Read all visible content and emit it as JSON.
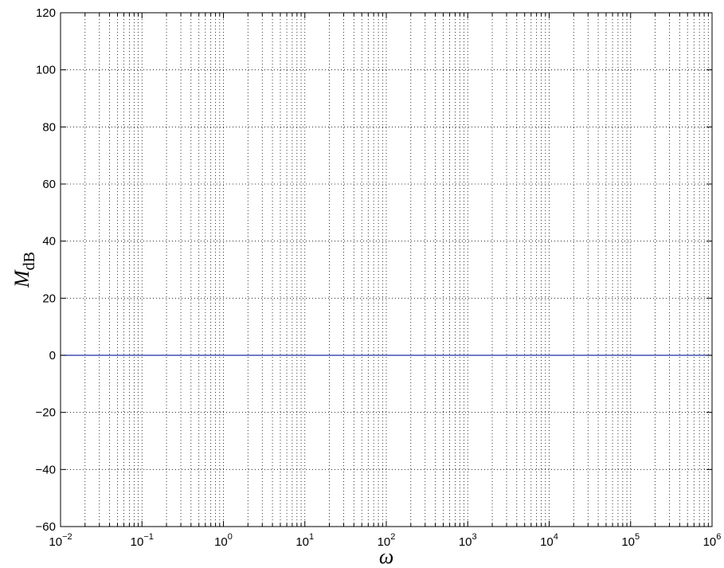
{
  "chart_data": {
    "type": "line",
    "title": "",
    "xlabel": "ω",
    "ylabel": {
      "main": "M",
      "sub": "dB"
    },
    "x_scale": "log",
    "xlim": [
      0.01,
      1000000
    ],
    "ylim": [
      -60,
      120
    ],
    "grid": true,
    "x_ticks": [
      {
        "value": 0.01,
        "base": "10",
        "exp": "−2"
      },
      {
        "value": 0.1,
        "base": "10",
        "exp": "−1"
      },
      {
        "value": 1,
        "base": "10",
        "exp": "0"
      },
      {
        "value": 10,
        "base": "10",
        "exp": "1"
      },
      {
        "value": 100,
        "base": "10",
        "exp": "2"
      },
      {
        "value": 1000,
        "base": "10",
        "exp": "3"
      },
      {
        "value": 10000,
        "base": "10",
        "exp": "4"
      },
      {
        "value": 100000,
        "base": "10",
        "exp": "5"
      },
      {
        "value": 1000000,
        "base": "10",
        "exp": "6"
      }
    ],
    "y_ticks": [
      {
        "value": 120,
        "label": "120"
      },
      {
        "value": 100,
        "label": "100"
      },
      {
        "value": 80,
        "label": "80"
      },
      {
        "value": 60,
        "label": "60"
      },
      {
        "value": 40,
        "label": "40"
      },
      {
        "value": 20,
        "label": "20"
      },
      {
        "value": 0,
        "label": "0"
      },
      {
        "value": -20,
        "label": "−20"
      },
      {
        "value": -40,
        "label": "−40"
      },
      {
        "value": -60,
        "label": "−60"
      }
    ],
    "series": [
      {
        "color": "#1f2fa8",
        "x": [
          0.01,
          0.1,
          1,
          10,
          100,
          1000,
          10000,
          100000,
          1000000
        ],
        "y": [
          0,
          0,
          0,
          0,
          0,
          0,
          0,
          0,
          0
        ]
      }
    ]
  }
}
